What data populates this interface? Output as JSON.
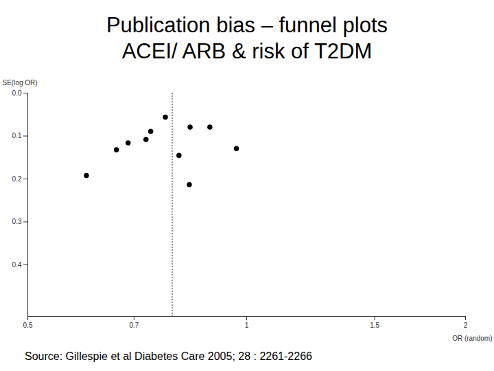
{
  "chart_data": {
    "type": "scatter",
    "title": [
      "Publication bias – funnel plots",
      "ACEI/ ARB & risk of T2DM"
    ],
    "caption": "Source: Gillespie et al Diabetes Care 2005; 28 : 2261-2266",
    "x_label": "OR (random)",
    "y_label": "SE(log OR)",
    "x": [
      0.602,
      0.662,
      0.687,
      0.727,
      0.738,
      0.773,
      0.807,
      0.836,
      0.834,
      0.89,
      0.968
    ],
    "values": [
      0.192,
      0.132,
      0.116,
      0.108,
      0.089,
      0.056,
      0.145,
      0.079,
      0.213,
      0.079,
      0.129
    ],
    "pooled_or": 0.79,
    "color": "#000000",
    "marker": "circle",
    "log": "x",
    "xlim": [
      0.5,
      2
    ],
    "xticks": [
      0.5,
      0.7,
      1,
      1.5,
      2
    ],
    "ylim": [
      0,
      0.52
    ],
    "yticks": [
      {
        "value": 0,
        "label": "0.0"
      },
      0.1,
      0.2,
      0.3,
      0.4
    ]
  }
}
